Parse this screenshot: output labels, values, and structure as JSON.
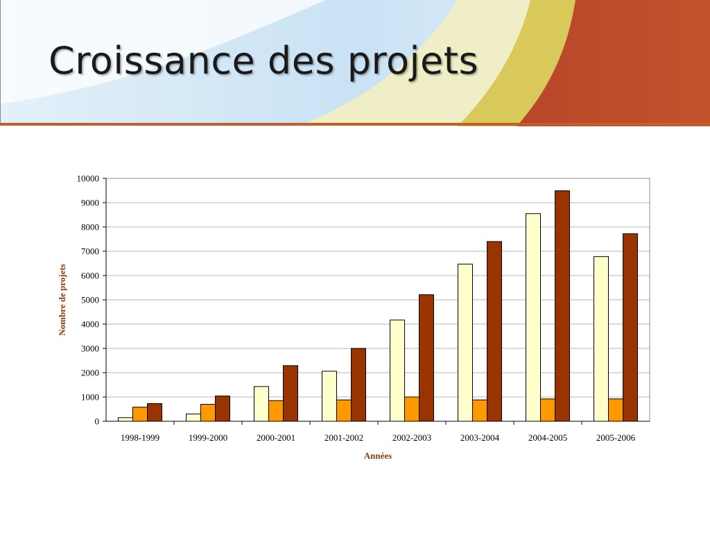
{
  "slide": {
    "title": "Croissance des projets"
  },
  "colors": {
    "band_sky": "#cfe6f5",
    "band_cream": "#efeec6",
    "band_gold": "#d8c95a",
    "band_rust": "#b8492a",
    "rule": "#c0612d"
  },
  "chart_data": {
    "type": "bar",
    "title": "",
    "xlabel": "Années",
    "ylabel": "Nombre de projets",
    "ylim": [
      0,
      10000
    ],
    "yticks": [
      "0",
      "1000",
      "2000",
      "3000",
      "4000",
      "5000",
      "6000",
      "7000",
      "8000",
      "9000",
      "10000"
    ],
    "grid": true,
    "legend": "none",
    "categories": [
      "1998-1999",
      "1999-2000",
      "2000-2001",
      "2001-2002",
      "2002-2003",
      "2003-2004",
      "2004-2005",
      "2005-2006"
    ],
    "series": [
      {
        "color": "#FFFFCC",
        "values": [
          150,
          300,
          1430,
          2060,
          4170,
          6470,
          8550,
          6780
        ]
      },
      {
        "color": "#FF9900",
        "values": [
          580,
          700,
          850,
          880,
          1000,
          880,
          920,
          920
        ]
      },
      {
        "color": "#993300",
        "values": [
          730,
          1040,
          2290,
          3000,
          5210,
          7400,
          9490,
          7720
        ]
      }
    ]
  }
}
